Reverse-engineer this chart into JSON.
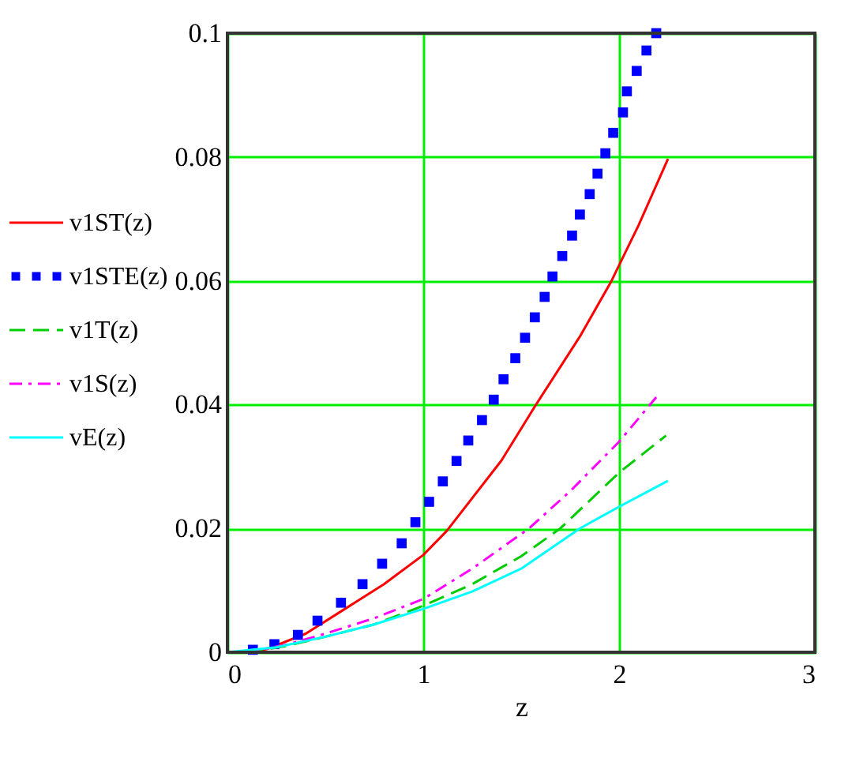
{
  "chart_data": {
    "type": "line",
    "xlabel": "z",
    "xlim": [
      0,
      3
    ],
    "ylim": [
      0,
      0.1
    ],
    "xticks": [
      0,
      1,
      2,
      3
    ],
    "yticks": [
      0,
      0.02,
      0.04,
      0.06,
      0.08,
      0.1
    ],
    "grid": true,
    "legend": "left",
    "series": [
      {
        "name": "v1ST(z)",
        "color": "#ff0000",
        "line_style": "solid",
        "x": [
          0.1,
          0.2,
          0.4,
          0.6,
          0.8,
          1.0,
          1.12,
          1.4,
          1.57,
          1.8,
          1.96,
          2.1,
          2.25
        ],
        "values": [
          0,
          0.0005,
          0.003,
          0.007,
          0.011,
          0.0157,
          0.0196,
          0.031,
          0.0397,
          0.051,
          0.0599,
          0.069,
          0.0797
        ]
      },
      {
        "name": "v1STE(z)",
        "color": "#0000ff",
        "type": "scatter",
        "marker": "square",
        "x": [
          0.13,
          0.24,
          0.36,
          0.46,
          0.58,
          0.69,
          0.79,
          0.89,
          0.96,
          1.03,
          1.1,
          1.17,
          1.23,
          1.3,
          1.36,
          1.41,
          1.47,
          1.52,
          1.57,
          1.62,
          1.66,
          1.71,
          1.76,
          1.8,
          1.85,
          1.89,
          1.93,
          1.97,
          2.02,
          2.04,
          2.09,
          2.14,
          2.19
        ],
        "values": [
          0.0004,
          0.0013,
          0.0028,
          0.0051,
          0.008,
          0.011,
          0.0143,
          0.0176,
          0.021,
          0.0243,
          0.0276,
          0.0309,
          0.0342,
          0.0375,
          0.0408,
          0.0441,
          0.0475,
          0.0508,
          0.0541,
          0.0574,
          0.0607,
          0.064,
          0.0673,
          0.0707,
          0.074,
          0.0773,
          0.0806,
          0.0839,
          0.0872,
          0.0906,
          0.0939,
          0.0972,
          0.1
        ]
      },
      {
        "name": "v1T(z)",
        "color": "#00cc00",
        "line_style": "dashed",
        "x": [
          0.1,
          0.3,
          0.5,
          0.75,
          1.0,
          1.25,
          1.5,
          1.7,
          2.0,
          2.24
        ],
        "values": [
          0,
          0.001,
          0.0025,
          0.0045,
          0.0075,
          0.011,
          0.0155,
          0.02,
          0.029,
          0.035
        ]
      },
      {
        "name": "v1S(z)",
        "color": "#ff00ff",
        "line_style": "dashdot",
        "x": [
          0.1,
          0.3,
          0.5,
          0.75,
          1.0,
          1.25,
          1.54,
          1.75,
          2.0,
          2.19
        ],
        "values": [
          0,
          0.0012,
          0.003,
          0.0055,
          0.0086,
          0.0135,
          0.02,
          0.026,
          0.034,
          0.0412
        ]
      },
      {
        "name": "vE(z)",
        "color": "#00ffff",
        "line_style": "solid",
        "x": [
          0,
          0.25,
          0.5,
          0.75,
          1.0,
          1.25,
          1.5,
          1.8,
          2.0,
          2.25
        ],
        "values": [
          0,
          0.0008,
          0.0025,
          0.0045,
          0.007,
          0.0098,
          0.0135,
          0.02,
          0.0235,
          0.0277
        ]
      }
    ]
  }
}
